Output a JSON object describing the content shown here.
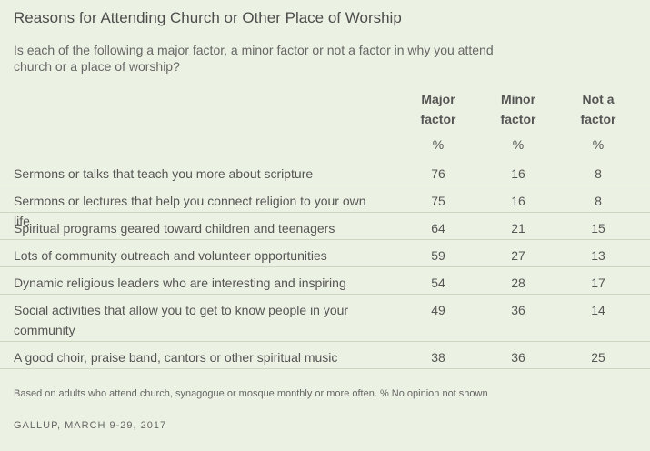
{
  "title": "Reasons for Attending Church or Other Place of Worship",
  "subtitle": "Is each of the following a major factor, a minor factor or not a factor in why you attend church or a place of worship?",
  "chart_data": {
    "type": "table",
    "columns": [
      {
        "line1": "Major",
        "line2": "factor",
        "unit": "%"
      },
      {
        "line1": "Minor",
        "line2": "factor",
        "unit": "%"
      },
      {
        "line1": "Not a",
        "line2": "factor",
        "unit": "%"
      }
    ],
    "rows": [
      {
        "label": "Sermons or talks that teach you more about scripture",
        "values": [
          "76",
          "16",
          "8"
        ]
      },
      {
        "label": "Sermons or lectures that help you connect religion to your own life",
        "values": [
          "75",
          "16",
          "8"
        ]
      },
      {
        "label": "Spiritual programs geared toward children and teenagers",
        "values": [
          "64",
          "21",
          "15"
        ]
      },
      {
        "label": "Lots of community outreach and volunteer opportunities",
        "values": [
          "59",
          "27",
          "13"
        ]
      },
      {
        "label": "Dynamic religious leaders who are interesting and inspiring",
        "values": [
          "54",
          "28",
          "17"
        ]
      },
      {
        "label": "Social activities that allow you to get to know people in your community",
        "values": [
          "49",
          "36",
          "14"
        ]
      },
      {
        "label": "A good choir, praise band, cantors or other spiritual music",
        "values": [
          "38",
          "36",
          "25"
        ]
      }
    ]
  },
  "footnote": "Based on adults who attend church, synagogue or mosque monthly or more often. % No opinion not shown",
  "source": "GALLUP, MARCH 9-29, 2017"
}
